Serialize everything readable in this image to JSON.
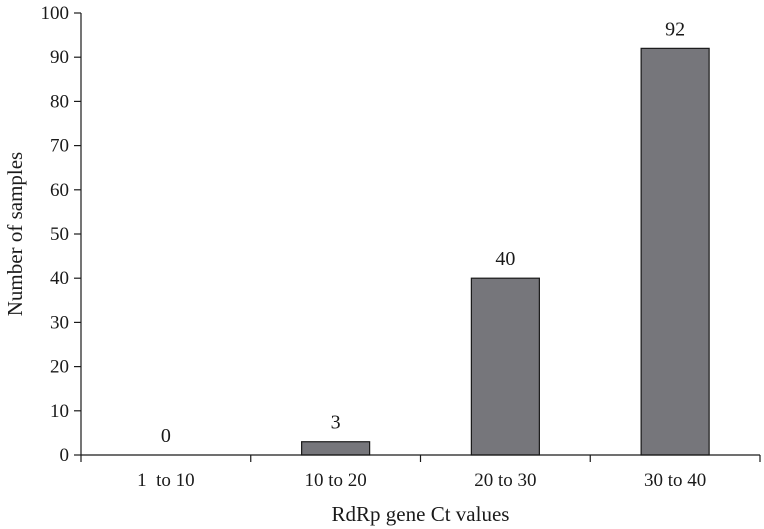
{
  "chart_data": {
    "type": "bar",
    "categories": [
      "1  to 10",
      "10 to 20",
      "20 to 30",
      "30 to 40"
    ],
    "values": [
      0,
      3,
      40,
      92
    ],
    "data_labels": [
      "0",
      "3",
      "40",
      "92"
    ],
    "title": "",
    "xlabel": "RdRp gene Ct values",
    "ylabel": "Number of samples",
    "ylim": [
      0,
      100
    ],
    "yticks": [
      "0",
      "10",
      "20",
      "30",
      "40",
      "50",
      "60",
      "70",
      "80",
      "90",
      "100"
    ],
    "grid": false,
    "bar_color": "#76767b"
  }
}
